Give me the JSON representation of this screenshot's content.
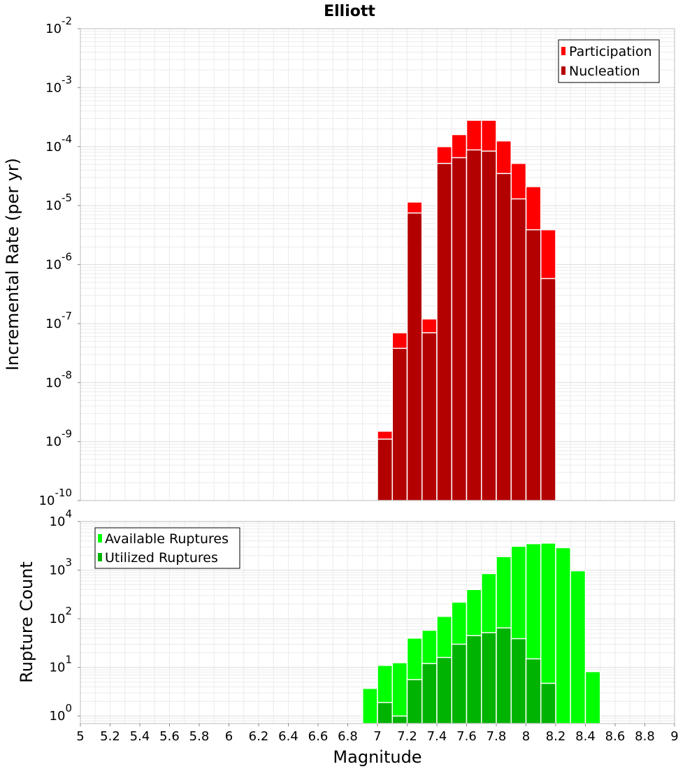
{
  "chart_data": [
    {
      "type": "bar",
      "title": "Elliott",
      "xlabel": "",
      "ylabel": "Incremental Rate (per yr)",
      "yscale": "log",
      "ylim": [
        1e-10,
        0.01
      ],
      "xlim": [
        5,
        9
      ],
      "bin_width": 0.1,
      "grid": true,
      "legend_position": "top-right",
      "x": [
        7.0,
        7.1,
        7.2,
        7.3,
        7.4,
        7.5,
        7.6,
        7.7,
        7.8,
        7.9,
        8.0,
        8.1
      ],
      "series": [
        {
          "name": "Participation",
          "color": "#ff0000",
          "values": [
            1.5e-09,
            7e-08,
            1.15e-05,
            1.2e-07,
            0.0001,
            0.00016,
            0.00028,
            0.00028,
            0.000125,
            5.2e-05,
            2.1e-05,
            3.9e-06
          ]
        },
        {
          "name": "Nucleation",
          "color": "#b30000",
          "values": [
            1.1e-09,
            3.8e-08,
            7.5e-06,
            7e-08,
            5.2e-05,
            6.5e-05,
            8.8e-05,
            8.4e-05,
            3.5e-05,
            1.3e-05,
            3.9e-06,
            5.8e-07
          ]
        }
      ]
    },
    {
      "type": "bar",
      "title": "",
      "xlabel": "Magnitude",
      "ylabel": "Rupture Count",
      "yscale": "log",
      "ylim": [
        0.7,
        10000
      ],
      "xlim": [
        5,
        9
      ],
      "bin_width": 0.1,
      "grid": true,
      "legend_position": "top-left",
      "x": [
        6.9,
        7.0,
        7.1,
        7.2,
        7.3,
        7.4,
        7.5,
        7.6,
        7.7,
        7.8,
        7.9,
        8.0,
        8.1,
        8.2,
        8.3,
        8.4
      ],
      "series": [
        {
          "name": "Available Ruptures",
          "color": "#00ff00",
          "values": [
            3.7,
            11,
            12.5,
            40,
            58,
            112,
            220,
            400,
            850,
            1900,
            3100,
            3500,
            3600,
            2900,
            970,
            8.2
          ]
        },
        {
          "name": "Utilized Ruptures",
          "color": "#00b300",
          "values": [
            null,
            1.9,
            1.0,
            5.6,
            12,
            16,
            30,
            45,
            52,
            65,
            39,
            15,
            4.7,
            null,
            null,
            null
          ]
        }
      ],
      "xticks": [
        "5",
        "5.2",
        "5.4",
        "5.6",
        "5.8",
        "6",
        "6.2",
        "6.4",
        "6.6",
        "6.8",
        "7",
        "7.2",
        "7.4",
        "7.6",
        "7.8",
        "8",
        "8.2",
        "8.4",
        "8.6",
        "8.8",
        "9"
      ]
    }
  ],
  "colors": {
    "grid": "#ebebeb",
    "frame": "#bdbdbd",
    "bar_edge": "#ffffff"
  }
}
